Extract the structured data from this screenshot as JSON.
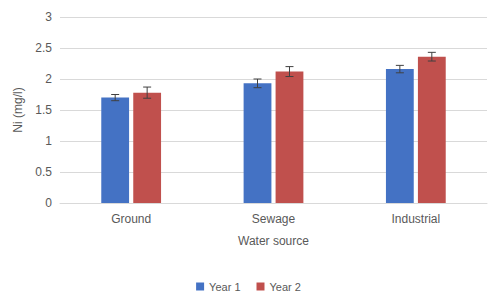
{
  "chart_data": {
    "type": "bar",
    "x_label": "Water source",
    "y_label": "Ni (mg/l)",
    "categories": [
      "Ground",
      "Sewage",
      "Industrial"
    ],
    "series": [
      {
        "name": "Year 1",
        "color": "#4472c4",
        "values": [
          1.7,
          1.93,
          2.16
        ],
        "errors": [
          0.05,
          0.07,
          0.06
        ]
      },
      {
        "name": "Year 2",
        "color": "#c0504d",
        "values": [
          1.78,
          2.12,
          2.36
        ],
        "errors": [
          0.09,
          0.08,
          0.07
        ]
      }
    ],
    "ylim": [
      0,
      3
    ],
    "yticks": [
      0,
      0.5,
      1,
      1.5,
      2,
      2.5,
      3
    ],
    "grid": true,
    "legend": "bottom"
  }
}
